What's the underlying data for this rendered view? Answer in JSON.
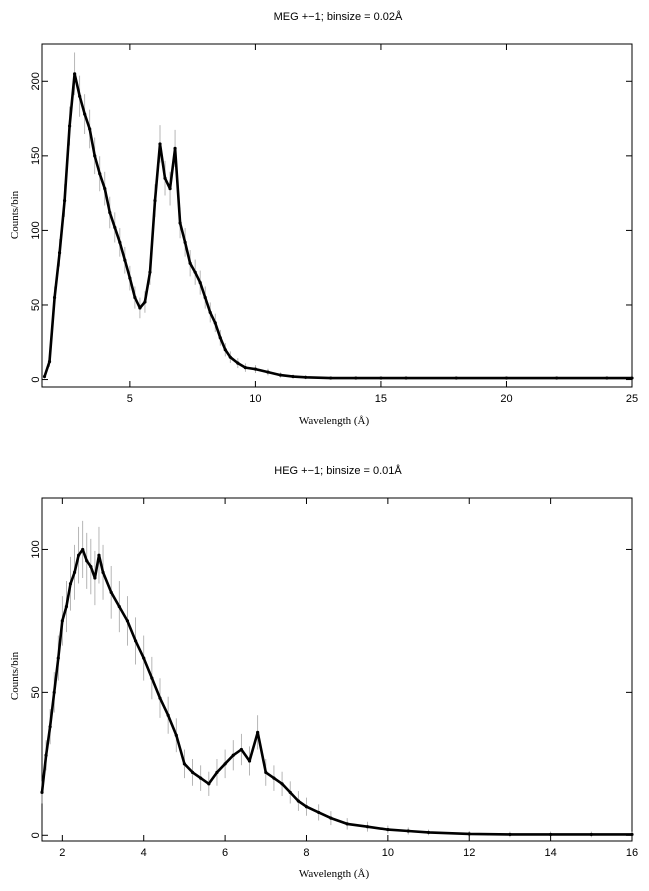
{
  "chart_data": [
    {
      "type": "line",
      "title": "MEG +−1; binsize = 0.02Å",
      "xlabel": "Wavelength (Å)",
      "ylabel": "Counts/bin",
      "xlim": [
        1.5,
        25
      ],
      "ylim": [
        -5,
        225
      ],
      "xticks": [
        5,
        10,
        15,
        20,
        25
      ],
      "yticks": [
        0,
        50,
        100,
        150,
        200
      ],
      "error_bars": true,
      "series": [
        {
          "x": [
            1.6,
            1.8,
            2.0,
            2.2,
            2.4,
            2.6,
            2.8,
            3.0,
            3.2,
            3.4,
            3.6,
            3.8,
            4.0,
            4.2,
            4.4,
            4.6,
            4.8,
            5.0,
            5.2,
            5.4,
            5.6,
            5.8,
            6.0,
            6.2,
            6.4,
            6.6,
            6.8,
            7.0,
            7.2,
            7.4,
            7.6,
            7.8,
            8.0,
            8.2,
            8.4,
            8.6,
            8.8,
            9.0,
            9.3,
            9.6,
            10.0,
            10.5,
            11.0,
            11.5,
            12.0,
            13.0,
            14.0,
            15.0,
            16.0,
            18.0,
            20.0,
            22.0,
            24.0,
            25.0
          ],
          "values": [
            2,
            12,
            55,
            85,
            120,
            170,
            205,
            190,
            178,
            168,
            150,
            138,
            128,
            112,
            102,
            92,
            80,
            68,
            55,
            48,
            52,
            72,
            120,
            158,
            135,
            128,
            155,
            105,
            92,
            78,
            72,
            65,
            55,
            45,
            38,
            28,
            20,
            15,
            11,
            8,
            7,
            5,
            3,
            2,
            1.5,
            1,
            1,
            1,
            1,
            1,
            1,
            1,
            1,
            1
          ]
        }
      ]
    },
    {
      "type": "line",
      "title": "HEG +−1; binsize = 0.01Å",
      "xlabel": "Wavelength (Å)",
      "ylabel": "Counts/bin",
      "xlim": [
        1.5,
        16
      ],
      "ylim": [
        -2,
        118
      ],
      "xticks": [
        2,
        4,
        6,
        8,
        10,
        12,
        14,
        16
      ],
      "yticks": [
        0,
        50,
        100
      ],
      "error_bars": true,
      "series": [
        {
          "x": [
            1.5,
            1.6,
            1.7,
            1.8,
            1.9,
            2.0,
            2.1,
            2.2,
            2.3,
            2.4,
            2.5,
            2.6,
            2.7,
            2.8,
            2.9,
            3.0,
            3.2,
            3.4,
            3.6,
            3.8,
            4.0,
            4.2,
            4.4,
            4.6,
            4.8,
            5.0,
            5.2,
            5.4,
            5.6,
            5.8,
            6.0,
            6.2,
            6.4,
            6.6,
            6.8,
            7.0,
            7.2,
            7.4,
            7.6,
            7.8,
            8.0,
            8.3,
            8.6,
            9.0,
            9.5,
            10.0,
            10.5,
            11.0,
            12.0,
            13.0,
            14.0,
            15.0,
            16.0
          ],
          "values": [
            15,
            28,
            38,
            50,
            62,
            75,
            80,
            88,
            92,
            98,
            100,
            96,
            94,
            90,
            98,
            92,
            85,
            80,
            75,
            68,
            62,
            55,
            48,
            42,
            35,
            25,
            22,
            20,
            18,
            22,
            25,
            28,
            30,
            26,
            36,
            22,
            20,
            18,
            15,
            12,
            10,
            8,
            6,
            4,
            3,
            2,
            1.5,
            1,
            0.5,
            0.3,
            0.3,
            0.3,
            0.3
          ]
        }
      ]
    }
  ]
}
